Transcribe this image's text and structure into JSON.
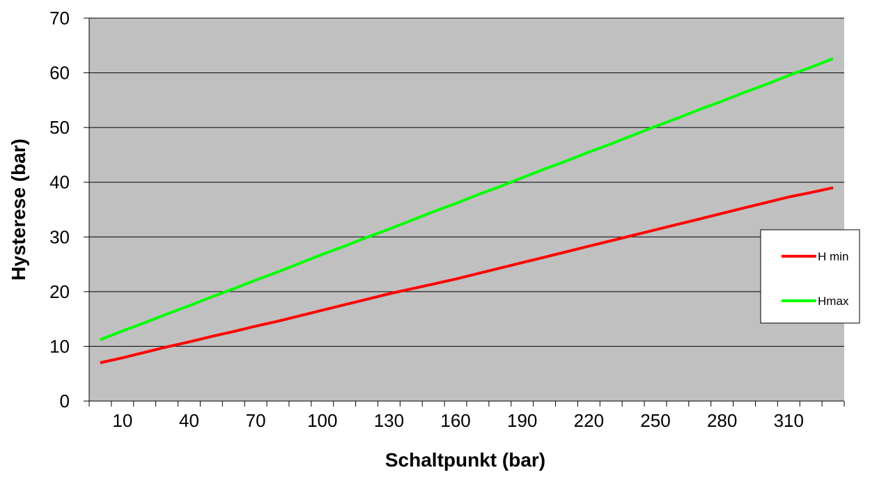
{
  "chart_data": {
    "type": "line",
    "xlabel": "Schaltpunkt (bar)",
    "ylabel": "Hysterese (bar)",
    "x": [
      1,
      10,
      20,
      30,
      40,
      50,
      60,
      70,
      80,
      90,
      100,
      110,
      120,
      130,
      140,
      150,
      160,
      170,
      180,
      190,
      200,
      210,
      220,
      230,
      240,
      250,
      260,
      270,
      280,
      290,
      300,
      310,
      320,
      330
    ],
    "x_tick_labels": [
      "10",
      "40",
      "70",
      "100",
      "130",
      "160",
      "190",
      "220",
      "250",
      "280",
      "310"
    ],
    "ylim": [
      0,
      70
    ],
    "y_ticks": [
      0,
      10,
      20,
      30,
      40,
      50,
      60,
      70
    ],
    "grid": true,
    "legend_position": "right",
    "series": [
      {
        "name": "H min",
        "color": "#ff0000",
        "values": [
          7,
          7.9,
          8.9,
          9.9,
          10.8,
          11.8,
          12.7,
          13.7,
          14.6,
          15.6,
          16.6,
          17.6,
          18.6,
          19.6,
          20.5,
          21.4,
          22.3,
          23.3,
          24.3,
          25.3,
          26.3,
          27.3,
          28.3,
          29.3,
          30.3,
          31.3,
          32.3,
          33.3,
          34.3,
          35.3,
          36.3,
          37.3,
          38.1,
          39
        ]
      },
      {
        "name": "Hmax",
        "color": "#00ff00",
        "values": [
          11.2,
          12.8,
          14.3,
          15.9,
          17.4,
          19.0,
          20.5,
          22.1,
          23.6,
          25.2,
          26.8,
          28.3,
          29.9,
          31.4,
          33.0,
          34.6,
          36.1,
          37.7,
          39.2,
          40.8,
          42.4,
          43.9,
          45.5,
          47.0,
          48.6,
          50.2,
          51.7,
          53.3,
          54.8,
          56.4,
          57.9,
          59.5,
          61.0,
          62.6
        ]
      }
    ]
  },
  "colors": {
    "plot_background": "#c0c0c0",
    "gridline": "#000000",
    "axis": "#000000"
  }
}
